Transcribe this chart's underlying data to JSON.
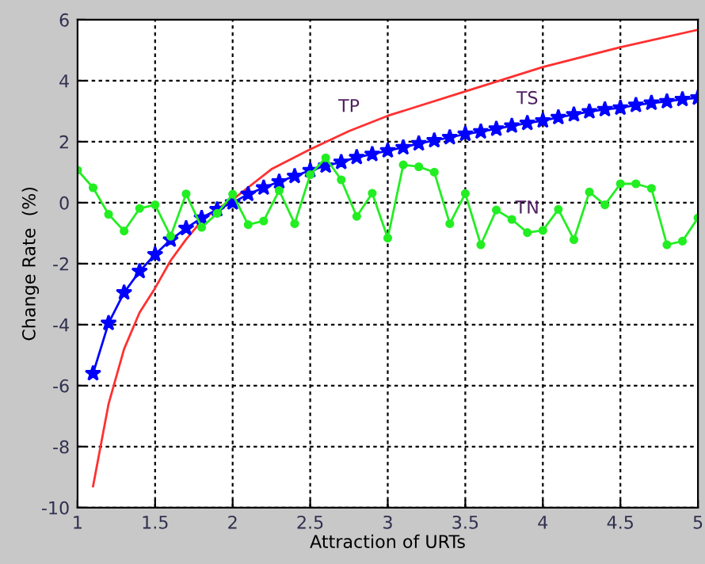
{
  "chart_data": {
    "type": "line",
    "xlabel": "Attraction of URTs",
    "ylabel": "Change Rate  (%)",
    "xlim": [
      1,
      5
    ],
    "ylim": [
      -10,
      6
    ],
    "xticks": [
      1,
      1.5,
      2,
      2.5,
      3,
      3.5,
      4,
      4.5,
      5
    ],
    "yticks": [
      -10,
      -8,
      -6,
      -4,
      -2,
      0,
      2,
      4,
      6
    ],
    "grid": true,
    "legend": false,
    "series": [
      {
        "name": "TP",
        "color": "#ff3030",
        "marker": "none",
        "x": [
          1.1,
          1.2,
          1.3,
          1.4,
          1.5,
          1.6,
          1.7,
          1.8,
          1.9,
          2.0,
          2.25,
          2.5,
          2.75,
          3.0,
          3.5,
          4.0,
          4.5,
          5.0
        ],
        "values": [
          -9.3,
          -6.6,
          -4.8,
          -3.6,
          -2.8,
          -1.9,
          -1.2,
          -0.6,
          -0.2,
          0.1,
          1.1,
          1.75,
          2.35,
          2.85,
          3.65,
          4.45,
          5.1,
          5.67
        ]
      },
      {
        "name": "TS",
        "color": "#0000ff",
        "marker": "star",
        "x": [
          1.1,
          1.2,
          1.3,
          1.4,
          1.5,
          1.6,
          1.7,
          1.8,
          1.9,
          2.0,
          2.1,
          2.2,
          2.3,
          2.4,
          2.5,
          2.6,
          2.7,
          2.8,
          2.9,
          3.0,
          3.1,
          3.2,
          3.3,
          3.4,
          3.5,
          3.6,
          3.7,
          3.8,
          3.9,
          4.0,
          4.1,
          4.2,
          4.3,
          4.4,
          4.5,
          4.6,
          4.7,
          4.8,
          4.9,
          5.0
        ],
        "values": [
          -5.6,
          -3.95,
          -2.95,
          -2.25,
          -1.7,
          -1.22,
          -0.84,
          -0.5,
          -0.22,
          0.0,
          0.28,
          0.49,
          0.69,
          0.87,
          1.06,
          1.21,
          1.33,
          1.49,
          1.59,
          1.71,
          1.81,
          1.94,
          2.04,
          2.14,
          2.25,
          2.33,
          2.42,
          2.52,
          2.61,
          2.69,
          2.8,
          2.89,
          2.99,
          3.06,
          3.11,
          3.2,
          3.27,
          3.32,
          3.39,
          3.44
        ]
      },
      {
        "name": "TN",
        "color": "#22ee22",
        "marker": "circle",
        "x": [
          1.0,
          1.1,
          1.2,
          1.3,
          1.4,
          1.5,
          1.6,
          1.7,
          1.8,
          1.9,
          2.0,
          2.1,
          2.2,
          2.3,
          2.4,
          2.5,
          2.6,
          2.7,
          2.8,
          2.9,
          3.0,
          3.1,
          3.2,
          3.3,
          3.4,
          3.5,
          3.6,
          3.7,
          3.8,
          3.9,
          4.0,
          4.1,
          4.2,
          4.3,
          4.4,
          4.5,
          4.6,
          4.7,
          4.8,
          4.9,
          5.0
        ],
        "values": [
          1.07,
          0.49,
          -0.38,
          -0.93,
          -0.19,
          -0.07,
          -1.1,
          0.29,
          -0.81,
          -0.35,
          0.28,
          -0.72,
          -0.6,
          0.4,
          -0.69,
          0.92,
          1.47,
          0.75,
          -0.45,
          0.31,
          -1.16,
          1.24,
          1.18,
          1.0,
          -0.69,
          0.3,
          -1.38,
          -0.24,
          -0.55,
          -0.98,
          -0.91,
          -0.22,
          -1.21,
          0.35,
          -0.07,
          0.62,
          0.62,
          0.47,
          -1.38,
          -1.26,
          -0.5
        ]
      }
    ]
  }
}
